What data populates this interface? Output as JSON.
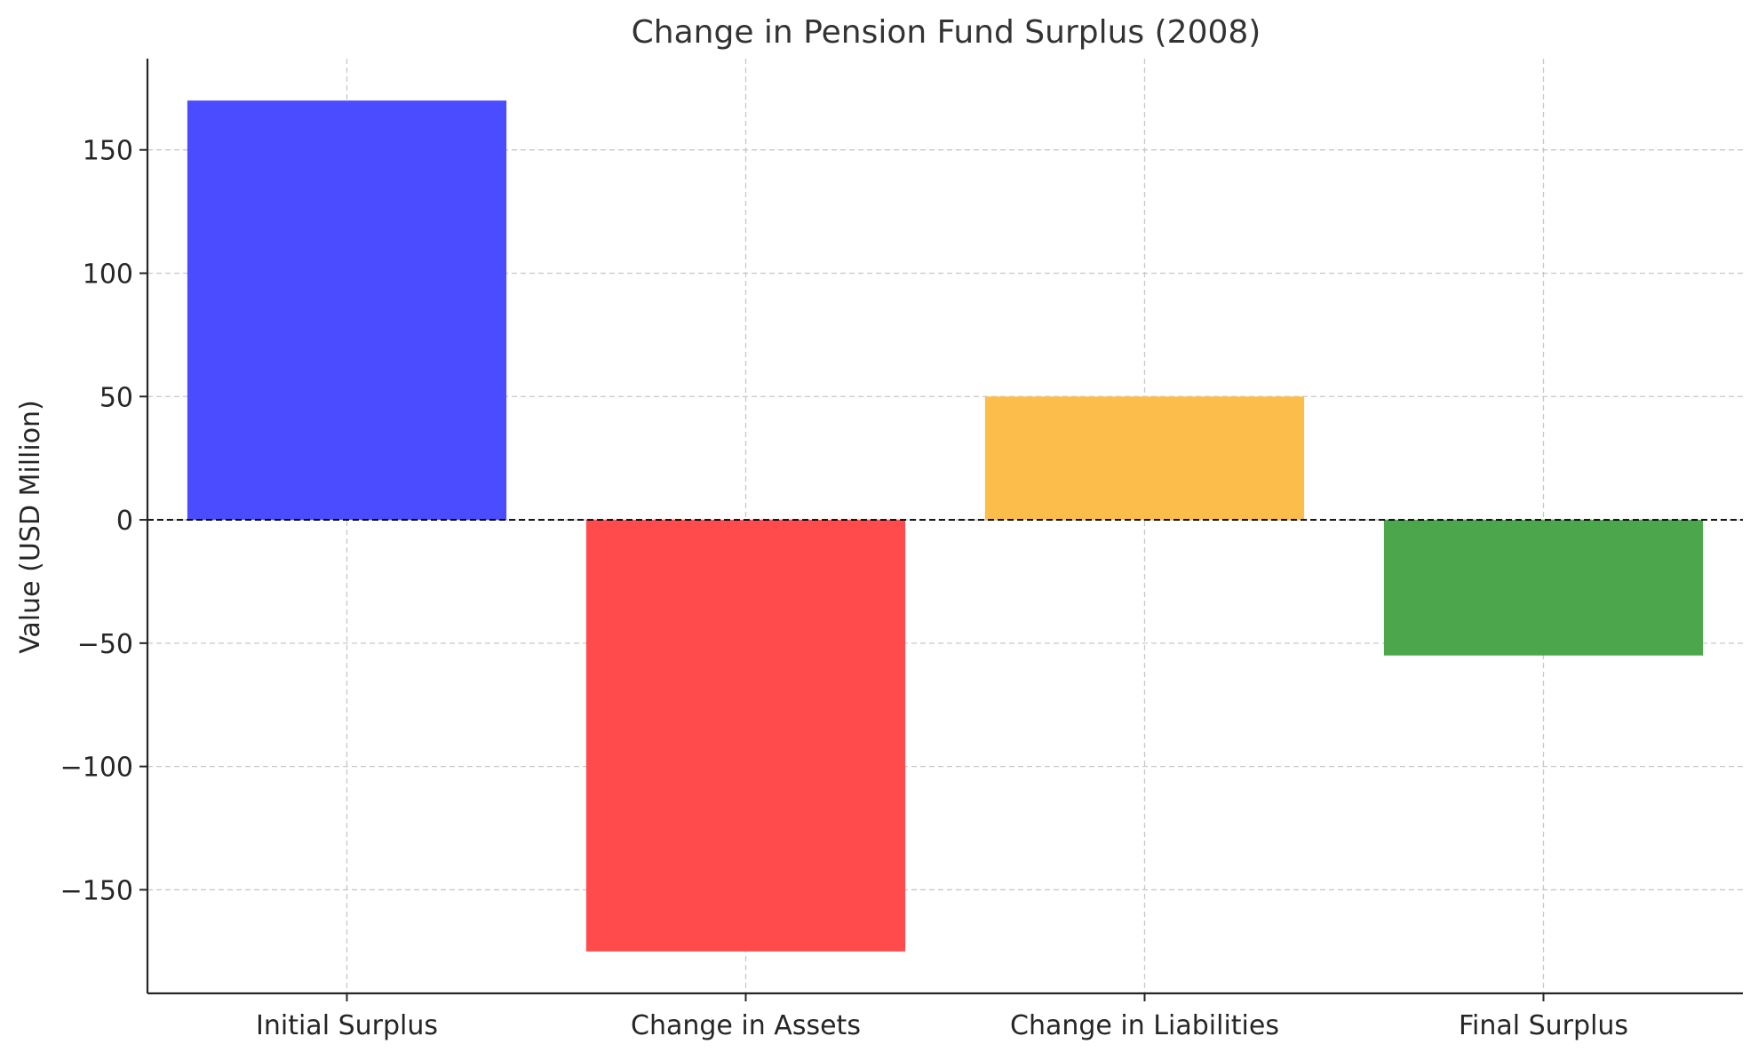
{
  "chart_data": {
    "type": "bar",
    "title": "Change in Pension Fund Surplus (2008)",
    "xlabel": "",
    "ylabel": "Value (USD Million)",
    "categories": [
      "Initial Surplus",
      "Change in Assets",
      "Change in Liabilities",
      "Final Surplus"
    ],
    "values": [
      170,
      -175,
      50,
      -55
    ],
    "colors": [
      "#4b4bff",
      "#ff4b4b",
      "#fdbd4b",
      "#4ca64c"
    ],
    "ylim": [
      -192,
      187
    ],
    "yticks": [
      150,
      100,
      50,
      0,
      -50,
      -100,
      -150
    ],
    "ytick_labels": [
      "150",
      "100",
      "50",
      "0",
      "−50",
      "−100",
      "−150"
    ],
    "grid": true,
    "zero_line": true
  }
}
